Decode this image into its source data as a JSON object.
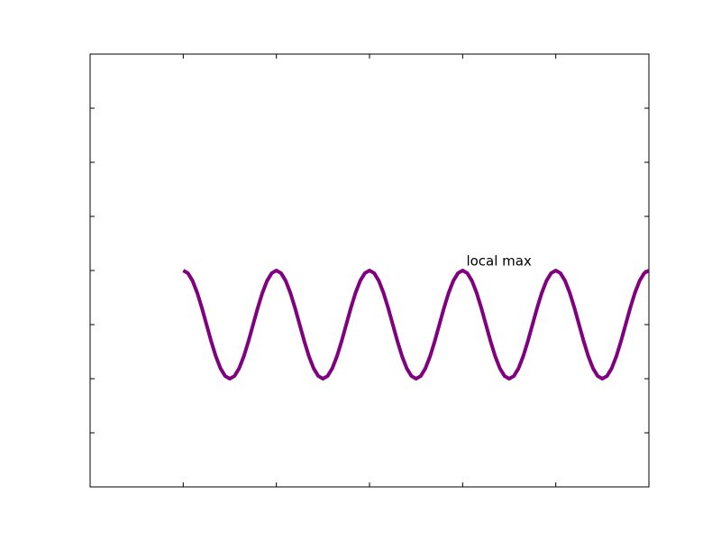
{
  "chart_data": {
    "type": "line",
    "x": [
      0,
      0.05,
      0.1,
      0.15,
      0.2,
      0.25,
      0.3,
      0.35,
      0.4,
      0.45,
      0.5,
      0.55,
      0.6,
      0.65,
      0.7,
      0.75,
      0.8,
      0.85,
      0.9,
      0.95,
      1,
      1.05,
      1.1,
      1.15,
      1.2,
      1.25,
      1.3,
      1.35,
      1.4,
      1.45,
      1.5,
      1.55,
      1.6,
      1.65,
      1.7,
      1.75,
      1.8,
      1.85,
      1.9,
      1.95,
      2,
      2.05,
      2.1,
      2.15,
      2.2,
      2.25,
      2.3,
      2.35,
      2.4,
      2.45,
      2.5,
      2.55,
      2.6,
      2.65,
      2.7,
      2.75,
      2.8,
      2.85,
      2.9,
      2.95,
      3,
      3.05,
      3.1,
      3.15,
      3.2,
      3.25,
      3.3,
      3.35,
      3.4,
      3.45,
      3.5,
      3.55,
      3.6,
      3.65,
      3.7,
      3.75,
      3.8,
      3.85,
      3.9,
      3.95,
      4,
      4.05,
      4.1,
      4.15,
      4.2,
      4.25,
      4.3,
      4.35,
      4.4,
      4.45,
      4.5,
      4.55,
      4.6,
      4.65,
      4.7,
      4.75,
      4.8,
      4.85,
      4.9,
      4.95,
      5
    ],
    "series": [
      {
        "color": "#800080",
        "values": [
          1,
          0.951,
          0.809,
          0.588,
          0.309,
          0,
          -0.309,
          -0.588,
          -0.809,
          -0.951,
          -1,
          -0.951,
          -0.809,
          -0.588,
          -0.309,
          0,
          0.309,
          0.588,
          0.809,
          0.951,
          1,
          0.951,
          0.809,
          0.588,
          0.309,
          0,
          -0.309,
          -0.588,
          -0.809,
          -0.951,
          -1,
          -0.951,
          -0.809,
          -0.588,
          -0.309,
          0,
          0.309,
          0.588,
          0.809,
          0.951,
          1,
          0.951,
          0.809,
          0.588,
          0.309,
          0,
          -0.309,
          -0.588,
          -0.809,
          -0.951,
          -1,
          -0.951,
          -0.809,
          -0.588,
          -0.309,
          0,
          0.309,
          0.588,
          0.809,
          0.951,
          1,
          0.951,
          0.809,
          0.588,
          0.309,
          0,
          -0.309,
          -0.588,
          -0.809,
          -0.951,
          -1,
          -0.951,
          -0.809,
          -0.588,
          -0.309,
          0,
          0.309,
          0.588,
          0.809,
          0.951,
          1,
          0.951,
          0.809,
          0.588,
          0.309,
          0,
          -0.309,
          -0.588,
          -0.809,
          -0.951,
          -1,
          -0.951,
          -0.809,
          -0.588,
          -0.309,
          0,
          0.309,
          0.588,
          0.809,
          0.951,
          1
        ]
      }
    ],
    "xlim": [
      -1,
      5
    ],
    "xticks": [
      -1,
      0,
      1,
      2,
      3,
      4,
      5
    ],
    "ylim": [
      -3,
      5
    ],
    "yticks": [
      -3,
      -2,
      -1,
      0,
      1,
      2,
      3,
      4,
      5
    ],
    "annotations": [
      {
        "text": "local max",
        "x": 3.04,
        "y": 1.17
      }
    ]
  }
}
